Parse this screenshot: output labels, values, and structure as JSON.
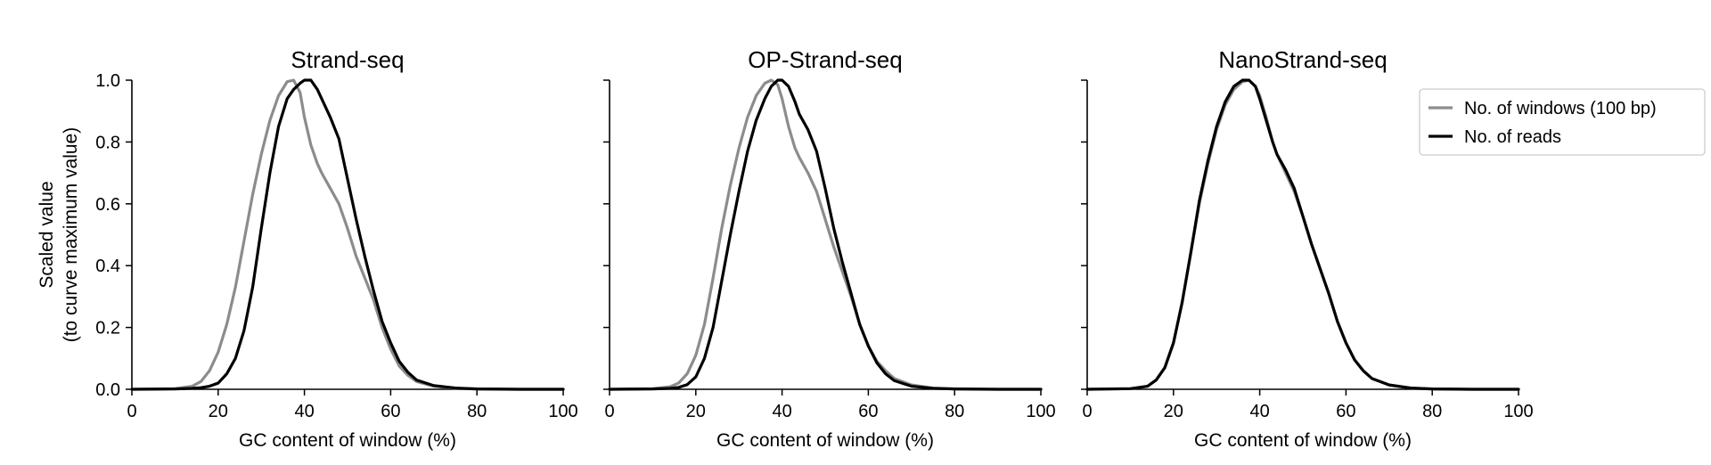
{
  "chart_data": [
    {
      "type": "line",
      "title": "Strand-seq",
      "xlabel": "GC content of window (%)",
      "ylabel": [
        "Scaled value",
        "(to curve maximum value)"
      ],
      "xlim": [
        0,
        100
      ],
      "ylim": [
        0,
        1
      ],
      "xticks": [
        0,
        20,
        40,
        60,
        80,
        100
      ],
      "yticks": [
        "0.0",
        "0.2",
        "0.4",
        "0.6",
        "0.8",
        "1.0"
      ],
      "x": [
        0,
        10,
        14,
        16,
        18,
        20,
        22,
        24,
        26,
        28,
        30,
        32,
        34,
        36,
        37.5,
        39,
        40,
        41.5,
        43,
        44,
        46,
        48,
        50,
        52,
        54,
        56,
        58,
        60,
        62,
        64,
        66,
        70,
        75,
        80,
        90,
        100
      ],
      "series": [
        {
          "name": "No. of windows (100 bp)",
          "color": "#8c8c8c",
          "values": [
            0,
            0.002,
            0.01,
            0.025,
            0.06,
            0.12,
            0.21,
            0.33,
            0.48,
            0.63,
            0.76,
            0.87,
            0.95,
            0.995,
            1.0,
            0.96,
            0.88,
            0.79,
            0.73,
            0.7,
            0.65,
            0.6,
            0.52,
            0.43,
            0.36,
            0.29,
            0.2,
            0.13,
            0.075,
            0.045,
            0.025,
            0.01,
            0.003,
            0.001,
            0,
            0
          ]
        },
        {
          "name": "No. of reads",
          "color": "#000000",
          "values": [
            0,
            0.001,
            0.003,
            0.005,
            0.01,
            0.02,
            0.05,
            0.1,
            0.19,
            0.33,
            0.52,
            0.7,
            0.85,
            0.94,
            0.97,
            0.99,
            1.0,
            1.0,
            0.97,
            0.94,
            0.88,
            0.81,
            0.68,
            0.55,
            0.43,
            0.32,
            0.22,
            0.15,
            0.09,
            0.055,
            0.03,
            0.012,
            0.004,
            0.001,
            0,
            0
          ]
        }
      ]
    },
    {
      "type": "line",
      "title": "OP-Strand-seq",
      "xlabel": "GC content of window (%)",
      "xlim": [
        0,
        100
      ],
      "ylim": [
        0,
        1
      ],
      "xticks": [
        0,
        20,
        40,
        60,
        80,
        100
      ],
      "x": [
        0,
        10,
        14,
        16,
        18,
        20,
        22,
        24,
        26,
        28,
        30,
        32,
        34,
        36,
        37.5,
        39,
        40,
        41.5,
        43,
        44,
        46,
        48,
        50,
        52,
        54,
        56,
        58,
        60,
        62,
        64,
        66,
        70,
        75,
        80,
        90,
        100
      ],
      "series": [
        {
          "name": "No. of windows (100 bp)",
          "color": "#8c8c8c",
          "values": [
            0,
            0.002,
            0.008,
            0.02,
            0.05,
            0.11,
            0.21,
            0.36,
            0.52,
            0.66,
            0.78,
            0.88,
            0.95,
            0.99,
            1.0,
            0.985,
            0.94,
            0.85,
            0.78,
            0.75,
            0.7,
            0.64,
            0.55,
            0.46,
            0.38,
            0.3,
            0.21,
            0.14,
            0.09,
            0.06,
            0.035,
            0.014,
            0.004,
            0.001,
            0,
            0
          ]
        },
        {
          "name": "No. of reads",
          "color": "#000000",
          "values": [
            0,
            0.001,
            0.003,
            0.006,
            0.015,
            0.04,
            0.1,
            0.2,
            0.35,
            0.5,
            0.64,
            0.77,
            0.87,
            0.94,
            0.98,
            1.0,
            1.0,
            0.98,
            0.93,
            0.89,
            0.84,
            0.77,
            0.65,
            0.52,
            0.41,
            0.31,
            0.21,
            0.14,
            0.085,
            0.05,
            0.028,
            0.01,
            0.003,
            0.001,
            0,
            0
          ]
        }
      ]
    },
    {
      "type": "line",
      "title": "NanoStrand-seq",
      "xlabel": "GC content of window (%)",
      "xlim": [
        0,
        100
      ],
      "ylim": [
        0,
        1
      ],
      "xticks": [
        0,
        20,
        40,
        60,
        80,
        100
      ],
      "x": [
        0,
        10,
        14,
        16,
        18,
        20,
        22,
        24,
        26,
        28,
        30,
        32,
        34,
        36,
        37.5,
        39,
        40,
        41.5,
        43,
        44,
        46,
        48,
        50,
        52,
        54,
        56,
        58,
        60,
        62,
        64,
        66,
        70,
        75,
        80,
        90,
        100
      ],
      "series": [
        {
          "name": "No. of windows (100 bp)",
          "color": "#8c8c8c",
          "values": [
            0,
            0.002,
            0.01,
            0.03,
            0.07,
            0.15,
            0.28,
            0.44,
            0.6,
            0.73,
            0.84,
            0.92,
            0.97,
            0.995,
            1.0,
            0.98,
            0.95,
            0.88,
            0.8,
            0.76,
            0.7,
            0.64,
            0.56,
            0.47,
            0.39,
            0.31,
            0.22,
            0.15,
            0.095,
            0.06,
            0.035,
            0.014,
            0.004,
            0.001,
            0,
            0
          ]
        },
        {
          "name": "No. of reads",
          "color": "#000000",
          "values": [
            0,
            0.002,
            0.01,
            0.03,
            0.07,
            0.15,
            0.28,
            0.44,
            0.61,
            0.74,
            0.85,
            0.93,
            0.98,
            1.0,
            1.0,
            0.98,
            0.94,
            0.87,
            0.8,
            0.76,
            0.71,
            0.65,
            0.56,
            0.47,
            0.39,
            0.31,
            0.22,
            0.15,
            0.095,
            0.06,
            0.035,
            0.014,
            0.004,
            0.001,
            0,
            0
          ]
        }
      ]
    }
  ],
  "legend": {
    "placement": "top-right",
    "items": [
      {
        "label": "No. of windows (100 bp)",
        "color": "#8c8c8c"
      },
      {
        "label": "No. of reads",
        "color": "#000000"
      }
    ]
  }
}
